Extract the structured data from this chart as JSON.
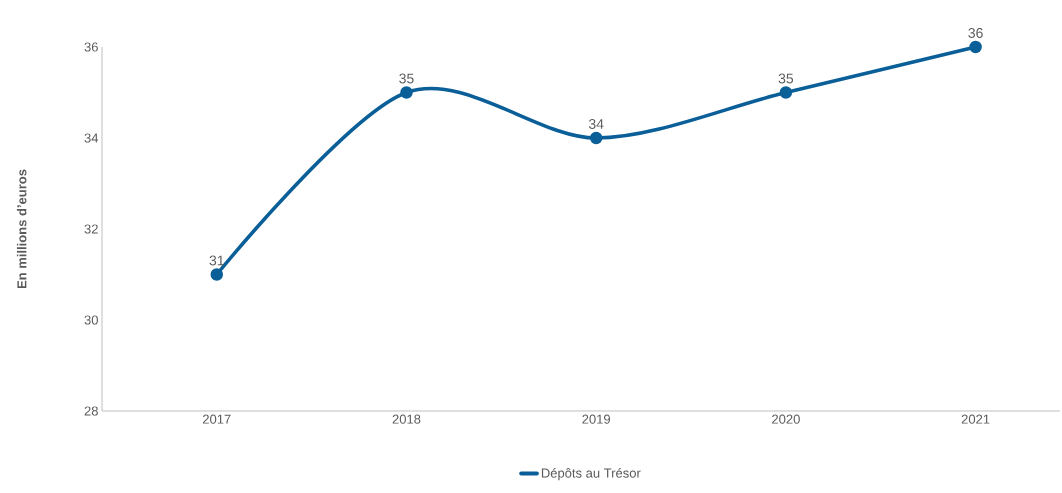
{
  "chart_data": {
    "type": "line",
    "ylabel": "En millions d’euros",
    "categories": [
      "2017",
      "2018",
      "2019",
      "2020",
      "2021"
    ],
    "series": [
      {
        "name": "Dépôts au Trésor",
        "color": "#0b5f98",
        "values": [
          31,
          35,
          34,
          35,
          36
        ]
      }
    ],
    "ylim": [
      28,
      36
    ],
    "yticks": [
      28,
      30,
      32,
      34,
      36
    ],
    "grid": false,
    "legend": "bottom",
    "marker": "circle",
    "line_style": "solid",
    "data_labels": true
  }
}
